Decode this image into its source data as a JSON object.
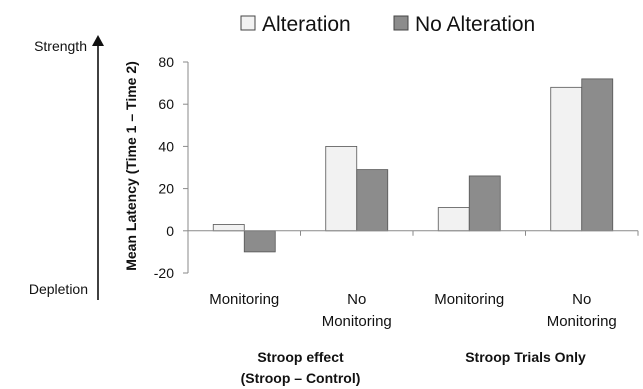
{
  "chart_data": {
    "type": "bar",
    "title": "",
    "xlabel": "",
    "ylabel": "Mean Latency (Time 1 – Time 2)",
    "ylim": [
      -20,
      80
    ],
    "yticks": [
      -20,
      0,
      20,
      40,
      60,
      80
    ],
    "grid": false,
    "legend_position": "top",
    "categories": [
      [
        "Monitoring"
      ],
      [
        "No",
        "Monitoring"
      ],
      [
        "Monitoring"
      ],
      [
        "No",
        "Monitoring"
      ]
    ],
    "groups": [
      {
        "label": [
          "Stroop effect",
          "(Stroop – Control)"
        ],
        "categories": [
          0,
          1
        ]
      },
      {
        "label": [
          "Stroop Trials Only"
        ],
        "categories": [
          2,
          3
        ]
      }
    ],
    "series": [
      {
        "name": "Alteration",
        "color": "#f2f2f2",
        "values": [
          3,
          40,
          11,
          68
        ]
      },
      {
        "name": "No Alteration",
        "color": "#8c8c8c",
        "values": [
          -10,
          29,
          26,
          72
        ]
      }
    ],
    "side_labels": {
      "top": "Strength",
      "bottom": "Depletion"
    }
  }
}
